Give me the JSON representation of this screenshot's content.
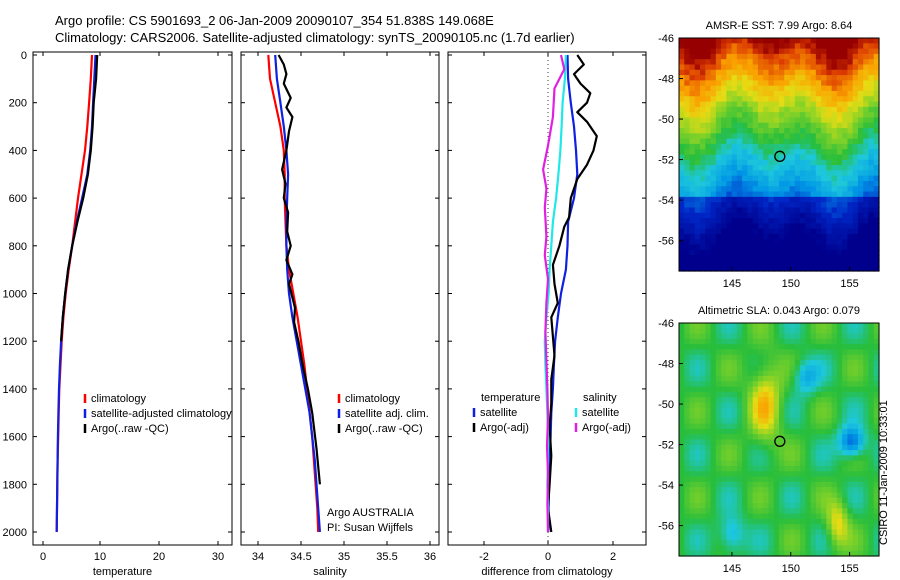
{
  "header": {
    "title_line1": "Argo profile: CS 5901693_2 06-Jan-2009 20090107_354 51.838S 149.068E",
    "title_line2": "Climatology: CARS2006. Satellite-adjusted climatology: synTS_20090105.nc (1.7d earlier)"
  },
  "side_label": "CSIRO 11-Jan-2009 10:33:01",
  "colors": {
    "red": "#ff0000",
    "blue": "#1020e0",
    "black": "#000000",
    "cyan": "#20e8e8",
    "magenta": "#e020e0"
  },
  "chart_data": [
    {
      "type": "line",
      "xlabel": "temperature",
      "xlim": [
        -2,
        31
      ],
      "ylim": [
        0,
        2050
      ],
      "xticks": [
        "0",
        "10",
        "20",
        "30"
      ],
      "yticks": [
        "0",
        "200",
        "400",
        "600",
        "800",
        "1000",
        "1200",
        "1400",
        "1600",
        "1800",
        "2000"
      ],
      "legend": {
        "placement": "lower-right",
        "entries": [
          "climatology",
          "satellite-adjusted climatology",
          "Argo(..raw -QC)"
        ]
      },
      "series": [
        {
          "name": "climatology",
          "color": "red",
          "x": [
            8.4,
            8.2,
            7.9,
            7.6,
            7.2,
            6.6,
            6.0,
            5.5,
            5.0,
            4.4,
            3.9,
            3.5,
            3.2,
            3.0,
            2.8,
            2.7,
            2.6,
            2.5,
            2.45,
            2.4,
            2.35
          ],
          "y": [
            0,
            100,
            200,
            300,
            400,
            500,
            600,
            700,
            800,
            900,
            1000,
            1100,
            1200,
            1300,
            1400,
            1500,
            1600,
            1700,
            1800,
            1900,
            2000
          ]
        },
        {
          "name": "satellite-adjusted climatology",
          "color": "blue",
          "x": [
            9.0,
            8.8,
            8.6,
            8.4,
            8.1,
            7.6,
            6.7,
            5.8,
            5.0,
            4.3,
            3.8,
            3.4,
            3.1,
            2.9,
            2.75,
            2.65,
            2.55,
            2.5,
            2.45,
            2.4,
            2.35
          ],
          "y": [
            0,
            100,
            200,
            300,
            400,
            500,
            600,
            700,
            800,
            900,
            1000,
            1100,
            1200,
            1300,
            1400,
            1500,
            1600,
            1700,
            1800,
            1900,
            2000
          ]
        },
        {
          "name": "Argo(..raw -QC)",
          "color": "black",
          "x": [
            9.3,
            9.1,
            8.7,
            8.5,
            8.2,
            7.7,
            6.9,
            5.9,
            5.0,
            4.3,
            3.8,
            3.4,
            3.1
          ],
          "y": [
            0,
            100,
            200,
            300,
            400,
            500,
            600,
            700,
            800,
            900,
            1000,
            1100,
            1200
          ]
        }
      ]
    },
    {
      "type": "line",
      "xlabel": "salinity",
      "xlim": [
        33.85,
        36.1
      ],
      "ylim": [
        0,
        2050
      ],
      "xticks": [
        "34",
        "34.5",
        "35",
        "35.5",
        "36"
      ],
      "annotation_line1": "Argo AUSTRALIA",
      "annotation_line2": "PI: Susan Wijffels",
      "legend": {
        "placement": "lower-right",
        "entries": [
          "climatology",
          "satellite adj. clim.",
          "Argo(..raw -QC)"
        ]
      },
      "series": [
        {
          "name": "climatology",
          "color": "red",
          "x": [
            34.12,
            34.14,
            34.2,
            34.26,
            34.3,
            34.31,
            34.31,
            34.32,
            34.33,
            34.36,
            34.41,
            34.46,
            34.5,
            34.54,
            34.57,
            34.6,
            34.63,
            34.65,
            34.67,
            34.69,
            34.7
          ],
          "y": [
            0,
            100,
            200,
            300,
            400,
            500,
            600,
            700,
            800,
            900,
            1000,
            1100,
            1200,
            1300,
            1400,
            1500,
            1600,
            1700,
            1800,
            1900,
            2000
          ]
        },
        {
          "name": "satellite adj. clim.",
          "color": "blue",
          "x": [
            34.2,
            34.22,
            34.26,
            34.3,
            34.33,
            34.35,
            34.34,
            34.33,
            34.33,
            34.34,
            34.36,
            34.4,
            34.45,
            34.5,
            34.55,
            34.6,
            34.63,
            34.66,
            34.68,
            34.7,
            34.72
          ],
          "y": [
            0,
            100,
            200,
            300,
            400,
            500,
            600,
            700,
            800,
            900,
            1000,
            1100,
            1200,
            1300,
            1400,
            1500,
            1600,
            1700,
            1800,
            1900,
            2000
          ]
        },
        {
          "name": "Argo(..raw -QC)",
          "color": "black",
          "x": [
            34.24,
            34.3,
            34.33,
            34.3,
            34.38,
            34.33,
            34.4,
            34.36,
            34.33,
            34.28,
            34.32,
            34.3,
            34.35,
            34.34,
            34.38,
            34.33,
            34.4,
            34.36,
            34.43,
            34.42,
            34.47,
            34.52,
            34.58,
            34.63,
            34.68,
            34.72
          ],
          "y": [
            0,
            40,
            80,
            120,
            180,
            220,
            260,
            320,
            400,
            480,
            540,
            600,
            660,
            740,
            800,
            860,
            920,
            960,
            1060,
            1120,
            1200,
            1300,
            1400,
            1500,
            1650,
            1800
          ]
        }
      ]
    },
    {
      "type": "line",
      "xlabel": "difference from climatology",
      "xlim": [
        -3.1,
        3.1
      ],
      "ylim": [
        0,
        2050
      ],
      "xticks": [
        "-2",
        "0",
        "2"
      ],
      "legend": {
        "placement": "lower-center",
        "col1_header": "temperature",
        "col1_entries": [
          "satellite",
          "Argo(-adj)"
        ],
        "col2_header": "salinity",
        "col2_entries": [
          "satellite",
          "Argo(-adj)"
        ]
      },
      "series": [
        {
          "name": "satellite",
          "color": "blue",
          "x": [
            0.6,
            0.62,
            0.7,
            0.8,
            0.86,
            0.9,
            0.8,
            0.62,
            0.6,
            0.55,
            0.4,
            0.3,
            0.22,
            0.18,
            0.15,
            0.1,
            0.08,
            0.05,
            0.03,
            0.02,
            0.01
          ],
          "y": [
            0,
            100,
            200,
            300,
            400,
            500,
            600,
            700,
            800,
            900,
            1000,
            1100,
            1200,
            1300,
            1400,
            1500,
            1600,
            1700,
            1800,
            1900,
            2000
          ]
        },
        {
          "name": "Argo(-adj)",
          "color": "black",
          "x": [
            0.9,
            1.1,
            0.8,
            1.0,
            1.3,
            1.2,
            0.9,
            1.2,
            1.5,
            1.4,
            1.2,
            0.9,
            0.7,
            0.65,
            0.5,
            0.35,
            0.15,
            0.2,
            0.3,
            0.1,
            0.15,
            0.2,
            0.1,
            0.1,
            0.05,
            0.1,
            0.05,
            0.0,
            0.1
          ],
          "y": [
            0,
            40,
            80,
            120,
            160,
            200,
            240,
            280,
            340,
            400,
            460,
            520,
            600,
            680,
            720,
            800,
            880,
            960,
            1040,
            1100,
            1180,
            1260,
            1360,
            1460,
            1560,
            1680,
            1800,
            1900,
            2000
          ]
        },
        {
          "name": "salinity satellite",
          "color": "cyan",
          "x": [
            0.55,
            0.52,
            0.45,
            0.42,
            0.38,
            0.32,
            0.25,
            0.15,
            0.1,
            0.05,
            0.02,
            -0.05,
            -0.1,
            -0.08,
            -0.05,
            -0.02,
            0.0,
            0.0,
            -0.02,
            0.0,
            0.0
          ],
          "y": [
            0,
            100,
            200,
            300,
            400,
            500,
            600,
            700,
            800,
            900,
            1000,
            1100,
            1200,
            1300,
            1400,
            1500,
            1600,
            1700,
            1800,
            1900,
            2000
          ]
        },
        {
          "name": "salinity Argo(-adj)",
          "color": "magenta",
          "x": [
            0.4,
            0.5,
            0.2,
            0.15,
            0.0,
            -0.15,
            -0.05,
            -0.1,
            -0.05,
            -0.1,
            0.0,
            -0.05,
            -0.08,
            -0.05,
            -0.02,
            0.0,
            -0.03,
            0.0,
            -0.02,
            0.0
          ],
          "y": [
            0,
            60,
            140,
            260,
            380,
            480,
            560,
            640,
            760,
            840,
            940,
            1040,
            1160,
            1280,
            1400,
            1520,
            1640,
            1760,
            1880,
            2000
          ]
        }
      ]
    },
    {
      "type": "heatmap",
      "title": "AMSR-E SST: 7.99 Argo: 8.64",
      "xlim": [
        140.5,
        157.5
      ],
      "ylim": [
        -57.5,
        -46
      ],
      "xticks": [
        "145",
        "150",
        "155"
      ],
      "yticks": [
        "-46",
        "-48",
        "-50",
        "-52",
        "-54",
        "-56"
      ],
      "marker": {
        "x": 149.07,
        "y": -51.84
      }
    },
    {
      "type": "heatmap",
      "title": "Altimetric SLA: 0.043 Argo: 0.079",
      "xlim": [
        140.5,
        157.5
      ],
      "ylim": [
        -57.5,
        -46
      ],
      "xticks": [
        "145",
        "150",
        "155"
      ],
      "yticks": [
        "-46",
        "-48",
        "-50",
        "-52",
        "-54",
        "-56"
      ],
      "marker": {
        "x": 149.07,
        "y": -51.84
      }
    }
  ]
}
